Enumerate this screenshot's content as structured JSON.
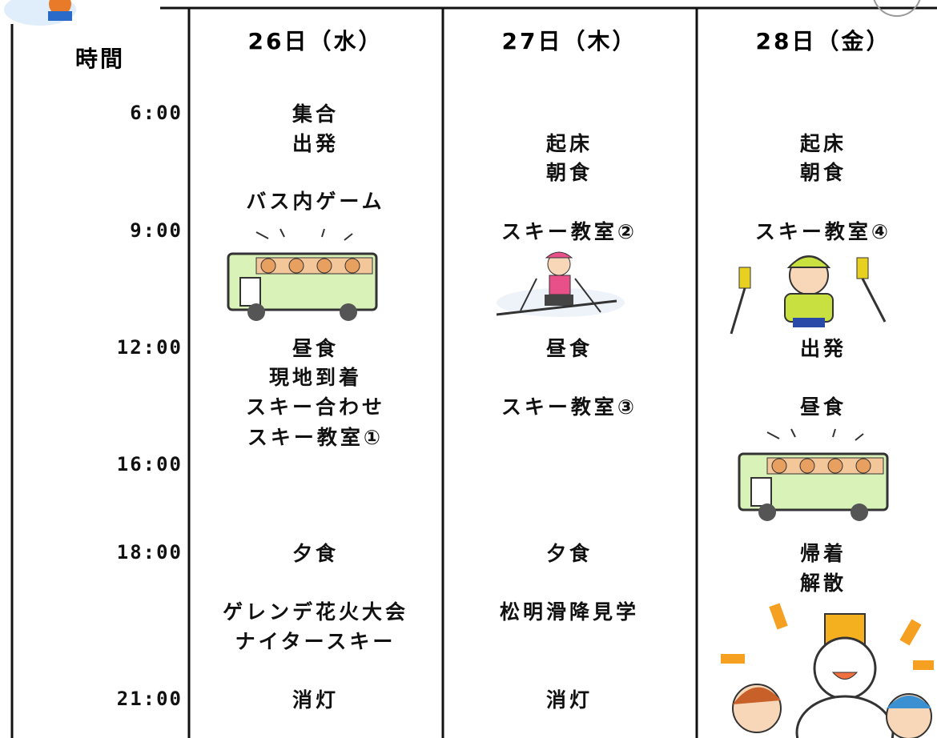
{
  "header": {
    "time_label": "時間"
  },
  "times": [
    "6:00",
    "9:00",
    "12:00",
    "16:00",
    "18:00",
    "21:00"
  ],
  "days": [
    {
      "label": "26日（水）",
      "entries": [
        "集合",
        "出発",
        "バス内ゲーム",
        "昼食",
        "現地到着",
        "スキー合わせ",
        "スキー教室①",
        "夕食",
        "ゲレンデ花火大会",
        "ナイタースキー",
        "消灯"
      ]
    },
    {
      "label": "27日（木）",
      "entries": [
        "起床",
        "朝食",
        "スキー教室②",
        "昼食",
        "スキー教室③",
        "夕食",
        "松明滑降見学",
        "消灯"
      ]
    },
    {
      "label": "28日（金）",
      "entries": [
        "起床",
        "朝食",
        "スキー教室④",
        "出発",
        "昼食",
        "帰着",
        "解散"
      ]
    }
  ]
}
